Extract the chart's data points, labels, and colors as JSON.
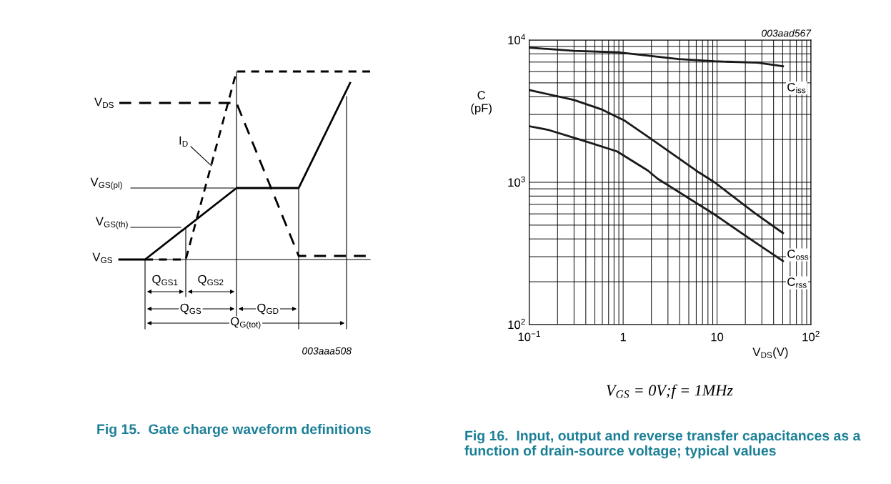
{
  "chart_data": [
    {
      "type": "other",
      "title": "Fig 15.  Gate charge waveform definitions",
      "annotations": [
        "V$_{DS}$",
        "I$_{D}$",
        "V$_{GS(pl)}$",
        "V$_{GS(th)}$",
        "V$_{GS}$",
        "Q$_{GS1}$",
        "Q$_{GS2}$",
        "Q$_{GS}$",
        "Q$_{GD}$",
        "Q$_{G(tot)}$",
        "003aaa508"
      ]
    },
    {
      "type": "line",
      "title": "Fig 16.  Input, output and reverse transfer capacitances as a function of drain-source voltage; typical values",
      "xlabel": "V$_{DS}$(V)",
      "ylabel": "C\n(pF)",
      "log": "xy",
      "grid": true,
      "legend": false,
      "xlim": [
        0.1,
        100
      ],
      "ylim": [
        100,
        10000
      ],
      "xticks": [
        {
          "value": 0.1,
          "label": "10$^{−1}$"
        },
        1,
        10,
        {
          "value": 100,
          "label": "10$^{2}$"
        }
      ],
      "yticks": [
        {
          "value": 100,
          "label": "10$^{2}$"
        },
        {
          "value": 1000,
          "label": "10$^{3}$"
        },
        {
          "value": 10000,
          "label": "10$^{4}$"
        }
      ],
      "annotations": [
        "003aad567",
        "V$_{GS}$ = 0V;f = 1MHz"
      ],
      "series": [
        {
          "name": "C$_{iss}$",
          "color": "#1a1a1a",
          "x": [
            0.1,
            0.3,
            0.91,
            3.9,
            9.4,
            26.9,
            50.3
          ],
          "values": [
            8840,
            8400,
            8190,
            7340,
            7090,
            6930,
            6540
          ]
        },
        {
          "name": "C$_{oss}$",
          "color": "#1a1a1a",
          "x": [
            0.1,
            0.3,
            0.6,
            1.02,
            1.94,
            6.2,
            9.4,
            25.4,
            50.3
          ],
          "values": [
            4450,
            3790,
            3240,
            2730,
            2040,
            1190,
            1000,
            605,
            440
          ]
        },
        {
          "name": "C$_{rss}$",
          "color": "#1a1a1a",
          "x": [
            0.1,
            0.158,
            0.38,
            0.86,
            1.83,
            2.33,
            9.4,
            22,
            50.3
          ],
          "values": [
            2480,
            2340,
            1960,
            1650,
            1210,
            1060,
            594,
            404,
            280
          ]
        }
      ]
    }
  ]
}
